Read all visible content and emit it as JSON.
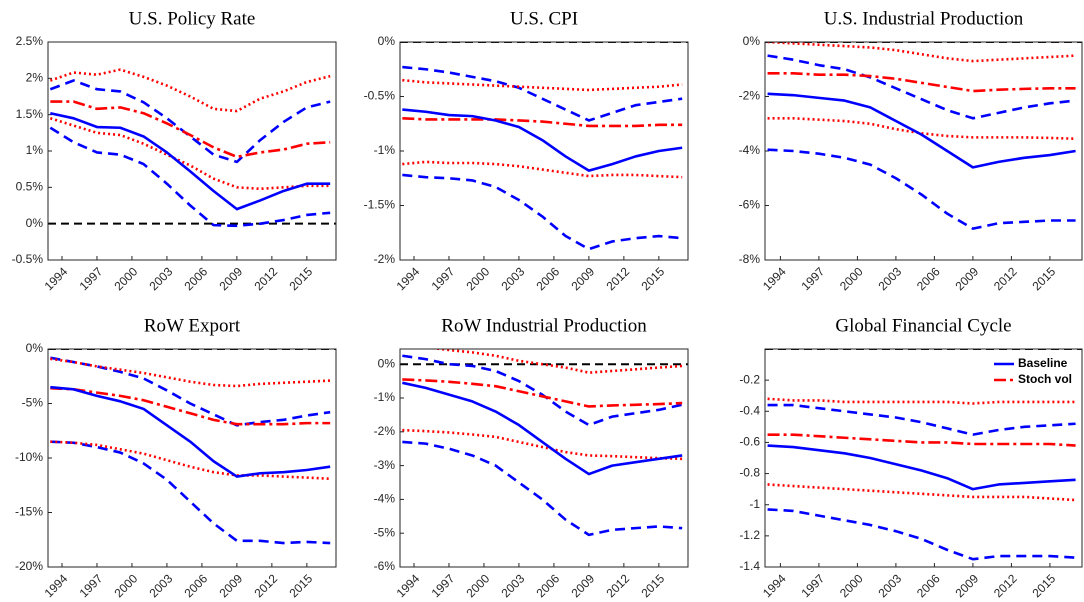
{
  "chart_data": [
    {
      "type": "line",
      "title": "U.S. Policy Rate",
      "zero_line": 0,
      "x": [
        1993,
        1995,
        1997,
        1999,
        2001,
        2003,
        2005,
        2007,
        2009,
        2011,
        2013,
        2015,
        2017
      ],
      "xlim": [
        1992.8,
        2017.5
      ],
      "xticks": [
        1994,
        1997,
        2000,
        2003,
        2006,
        2009,
        2012,
        2015
      ],
      "ylim": [
        -0.5,
        2.5
      ],
      "yticks": [
        {
          "value": -0.5,
          "label": "-0.5%"
        },
        {
          "value": 0,
          "label": "0%"
        },
        {
          "value": 0.5,
          "label": "0.5%"
        },
        {
          "value": 1,
          "label": "1%"
        },
        {
          "value": 1.5,
          "label": "1.5%"
        },
        {
          "value": 2,
          "label": "2%"
        },
        {
          "value": 2.5,
          "label": "2.5%"
        }
      ],
      "series": [
        {
          "color": "#0000ff",
          "style": "dashed",
          "values": [
            1.85,
            1.97,
            1.85,
            1.82,
            1.67,
            1.45,
            1.2,
            0.95,
            0.85,
            1.15,
            1.4,
            1.6,
            1.68
          ]
        },
        {
          "color": "#0000ff",
          "style": "dashed",
          "values": [
            1.32,
            1.12,
            0.98,
            0.95,
            0.82,
            0.55,
            0.25,
            -0.02,
            -0.03,
            0.0,
            0.05,
            0.12,
            0.15
          ]
        },
        {
          "color": "#ff0000",
          "style": "dotted",
          "values": [
            1.97,
            2.08,
            2.05,
            2.12,
            2.02,
            1.9,
            1.75,
            1.58,
            1.55,
            1.72,
            1.82,
            1.95,
            2.03
          ]
        },
        {
          "color": "#ff0000",
          "style": "dotted",
          "values": [
            1.45,
            1.35,
            1.25,
            1.22,
            1.1,
            0.95,
            0.8,
            0.62,
            0.5,
            0.48,
            0.5,
            0.52,
            0.52
          ]
        },
        {
          "color": "#ff0000",
          "style": "dashdot",
          "values": [
            1.68,
            1.68,
            1.58,
            1.6,
            1.52,
            1.38,
            1.22,
            1.05,
            0.92,
            0.98,
            1.02,
            1.1,
            1.12
          ]
        },
        {
          "color": "#0000ff",
          "style": "solid",
          "values": [
            1.52,
            1.45,
            1.33,
            1.32,
            1.2,
            0.98,
            0.72,
            0.45,
            0.2,
            0.32,
            0.45,
            0.55,
            0.55
          ]
        }
      ]
    },
    {
      "type": "line",
      "title": "U.S. CPI",
      "zero_line": 0,
      "x": [
        1993,
        1995,
        1997,
        1999,
        2001,
        2003,
        2005,
        2007,
        2009,
        2011,
        2013,
        2015,
        2017
      ],
      "xlim": [
        1992.8,
        2017.5
      ],
      "xticks": [
        1994,
        1997,
        2000,
        2003,
        2006,
        2009,
        2012,
        2015
      ],
      "ylim": [
        -2,
        0
      ],
      "yticks": [
        {
          "value": -2,
          "label": "-2%"
        },
        {
          "value": -1.5,
          "label": "-1.5%"
        },
        {
          "value": -1,
          "label": "-1%"
        },
        {
          "value": -0.5,
          "label": "-0.5%"
        },
        {
          "value": 0,
          "label": "0%"
        }
      ],
      "series": [
        {
          "color": "#0000ff",
          "style": "dashed",
          "values": [
            -0.23,
            -0.25,
            -0.28,
            -0.32,
            -0.36,
            -0.42,
            -0.52,
            -0.62,
            -0.72,
            -0.65,
            -0.58,
            -0.55,
            -0.52
          ]
        },
        {
          "color": "#0000ff",
          "style": "dashed",
          "values": [
            -1.22,
            -1.24,
            -1.25,
            -1.27,
            -1.33,
            -1.45,
            -1.6,
            -1.78,
            -1.9,
            -1.83,
            -1.8,
            -1.78,
            -1.8
          ]
        },
        {
          "color": "#ff0000",
          "style": "dotted",
          "values": [
            -0.35,
            -0.37,
            -0.38,
            -0.39,
            -0.4,
            -0.41,
            -0.42,
            -0.43,
            -0.44,
            -0.43,
            -0.42,
            -0.41,
            -0.39
          ]
        },
        {
          "color": "#ff0000",
          "style": "dotted",
          "values": [
            -1.12,
            -1.1,
            -1.11,
            -1.11,
            -1.12,
            -1.14,
            -1.17,
            -1.2,
            -1.23,
            -1.22,
            -1.22,
            -1.23,
            -1.24
          ]
        },
        {
          "color": "#ff0000",
          "style": "dashdot",
          "values": [
            -0.7,
            -0.71,
            -0.71,
            -0.71,
            -0.71,
            -0.72,
            -0.73,
            -0.75,
            -0.77,
            -0.77,
            -0.77,
            -0.76,
            -0.76
          ]
        },
        {
          "color": "#0000ff",
          "style": "solid",
          "values": [
            -0.62,
            -0.64,
            -0.67,
            -0.68,
            -0.72,
            -0.78,
            -0.9,
            -1.05,
            -1.18,
            -1.12,
            -1.05,
            -1.0,
            -0.97
          ]
        }
      ]
    },
    {
      "type": "line",
      "title": "U.S. Industrial Production",
      "zero_line": 0,
      "x": [
        1993,
        1995,
        1997,
        1999,
        2001,
        2003,
        2005,
        2007,
        2009,
        2011,
        2013,
        2015,
        2017
      ],
      "xlim": [
        1992.8,
        2017.5
      ],
      "xticks": [
        1994,
        1997,
        2000,
        2003,
        2006,
        2009,
        2012,
        2015
      ],
      "ylim": [
        -8,
        0
      ],
      "yticks": [
        {
          "value": -8,
          "label": "-8%"
        },
        {
          "value": -6,
          "label": "-6%"
        },
        {
          "value": -4,
          "label": "-4%"
        },
        {
          "value": -2,
          "label": "-2%"
        },
        {
          "value": 0,
          "label": "0%"
        }
      ],
      "series": [
        {
          "color": "#0000ff",
          "style": "dashed",
          "values": [
            -0.5,
            -0.65,
            -0.85,
            -1.0,
            -1.3,
            -1.7,
            -2.1,
            -2.5,
            -2.8,
            -2.6,
            -2.4,
            -2.25,
            -2.15
          ]
        },
        {
          "color": "#0000ff",
          "style": "dashed",
          "values": [
            -3.95,
            -4.0,
            -4.1,
            -4.25,
            -4.5,
            -5.0,
            -5.6,
            -6.3,
            -6.85,
            -6.65,
            -6.6,
            -6.55,
            -6.55
          ]
        },
        {
          "color": "#ff0000",
          "style": "dotted",
          "values": [
            0,
            -0.05,
            -0.1,
            -0.15,
            -0.2,
            -0.3,
            -0.45,
            -0.6,
            -0.7,
            -0.65,
            -0.6,
            -0.55,
            -0.5
          ]
        },
        {
          "color": "#ff0000",
          "style": "dotted",
          "values": [
            -2.8,
            -2.8,
            -2.85,
            -2.9,
            -3.0,
            -3.2,
            -3.35,
            -3.45,
            -3.5,
            -3.5,
            -3.5,
            -3.52,
            -3.55
          ]
        },
        {
          "color": "#ff0000",
          "style": "dashdot",
          "values": [
            -1.15,
            -1.15,
            -1.2,
            -1.2,
            -1.25,
            -1.35,
            -1.5,
            -1.65,
            -1.8,
            -1.75,
            -1.72,
            -1.7,
            -1.7
          ]
        },
        {
          "color": "#0000ff",
          "style": "solid",
          "values": [
            -1.9,
            -1.95,
            -2.05,
            -2.15,
            -2.4,
            -2.9,
            -3.4,
            -4.0,
            -4.6,
            -4.4,
            -4.25,
            -4.15,
            -4.0
          ]
        }
      ]
    },
    {
      "type": "line",
      "title": "RoW Export",
      "zero_line": 0,
      "x": [
        1993,
        1995,
        1997,
        1999,
        2001,
        2003,
        2005,
        2007,
        2009,
        2011,
        2013,
        2015,
        2017
      ],
      "xlim": [
        1992.8,
        2017.5
      ],
      "xticks": [
        1994,
        1997,
        2000,
        2003,
        2006,
        2009,
        2012,
        2015
      ],
      "ylim": [
        -20,
        0
      ],
      "yticks": [
        {
          "value": -20,
          "label": "-20%"
        },
        {
          "value": -15,
          "label": "-15%"
        },
        {
          "value": -10,
          "label": "-10%"
        },
        {
          "value": -5,
          "label": "-5%"
        },
        {
          "value": 0,
          "label": "0%"
        }
      ],
      "series": [
        {
          "color": "#0000ff",
          "style": "dashed",
          "values": [
            -0.8,
            -1.2,
            -1.6,
            -2.1,
            -2.7,
            -3.8,
            -5.0,
            -6.0,
            -7.0,
            -6.7,
            -6.5,
            -6.1,
            -5.8
          ]
        },
        {
          "color": "#0000ff",
          "style": "dashed",
          "values": [
            -8.5,
            -8.6,
            -9.0,
            -9.5,
            -10.5,
            -12.0,
            -14.0,
            -16.0,
            -17.6,
            -17.6,
            -17.8,
            -17.7,
            -17.8
          ]
        },
        {
          "color": "#ff0000",
          "style": "dotted",
          "values": [
            -0.9,
            -1.2,
            -1.6,
            -1.9,
            -2.2,
            -2.6,
            -3.0,
            -3.3,
            -3.4,
            -3.2,
            -3.1,
            -3.0,
            -2.9
          ]
        },
        {
          "color": "#ff0000",
          "style": "dotted",
          "values": [
            -8.5,
            -8.6,
            -8.8,
            -9.2,
            -9.6,
            -10.2,
            -10.8,
            -11.3,
            -11.6,
            -11.6,
            -11.7,
            -11.8,
            -11.9
          ]
        },
        {
          "color": "#ff0000",
          "style": "dashdot",
          "values": [
            -3.6,
            -3.7,
            -4.0,
            -4.3,
            -4.7,
            -5.3,
            -5.9,
            -6.5,
            -6.9,
            -6.9,
            -6.9,
            -6.8,
            -6.8
          ]
        },
        {
          "color": "#0000ff",
          "style": "solid",
          "values": [
            -3.5,
            -3.7,
            -4.3,
            -4.8,
            -5.5,
            -7.0,
            -8.5,
            -10.3,
            -11.7,
            -11.4,
            -11.3,
            -11.1,
            -10.8
          ]
        }
      ]
    },
    {
      "type": "line",
      "title": "RoW Industrial Production",
      "zero_line": 0,
      "x": [
        1993,
        1995,
        1997,
        1999,
        2001,
        2003,
        2005,
        2007,
        2009,
        2011,
        2013,
        2015,
        2017
      ],
      "xlim": [
        1992.8,
        2017.5
      ],
      "xticks": [
        1994,
        1997,
        2000,
        2003,
        2006,
        2009,
        2012,
        2015
      ],
      "ylim": [
        -6,
        0.45
      ],
      "yticks": [
        {
          "value": -6,
          "label": "-6%"
        },
        {
          "value": -5,
          "label": "-5%"
        },
        {
          "value": -4,
          "label": "-4%"
        },
        {
          "value": -3,
          "label": "-3%"
        },
        {
          "value": -2,
          "label": "-2%"
        },
        {
          "value": -1,
          "label": "-1%"
        },
        {
          "value": 0,
          "label": "0%"
        }
      ],
      "series": [
        {
          "color": "#0000ff",
          "style": "dashed",
          "values": [
            0.25,
            0.15,
            0.0,
            -0.05,
            -0.2,
            -0.5,
            -0.9,
            -1.4,
            -1.8,
            -1.55,
            -1.45,
            -1.35,
            -1.2
          ]
        },
        {
          "color": "#0000ff",
          "style": "dashed",
          "values": [
            -2.3,
            -2.35,
            -2.5,
            -2.7,
            -3.0,
            -3.5,
            -4.0,
            -4.6,
            -5.05,
            -4.9,
            -4.85,
            -4.8,
            -4.85
          ]
        },
        {
          "color": "#ff0000",
          "style": "dotted",
          "values": [
            0.52,
            0.5,
            0.42,
            0.35,
            0.25,
            0.1,
            0.0,
            -0.1,
            -0.25,
            -0.2,
            -0.15,
            -0.1,
            -0.05
          ]
        },
        {
          "color": "#ff0000",
          "style": "dotted",
          "values": [
            -1.95,
            -1.98,
            -2.02,
            -2.08,
            -2.15,
            -2.3,
            -2.45,
            -2.6,
            -2.7,
            -2.72,
            -2.75,
            -2.78,
            -2.8
          ]
        },
        {
          "color": "#ff0000",
          "style": "dashdot",
          "values": [
            -0.45,
            -0.48,
            -0.52,
            -0.58,
            -0.65,
            -0.8,
            -0.95,
            -1.1,
            -1.25,
            -1.22,
            -1.2,
            -1.18,
            -1.15
          ]
        },
        {
          "color": "#0000ff",
          "style": "solid",
          "values": [
            -0.55,
            -0.7,
            -0.9,
            -1.1,
            -1.4,
            -1.8,
            -2.3,
            -2.8,
            -3.25,
            -3.0,
            -2.9,
            -2.8,
            -2.7
          ]
        }
      ]
    },
    {
      "type": "line",
      "title": "Global Financial Cycle",
      "zero_line": 0,
      "legend": "upper right",
      "x": [
        1993,
        1995,
        1997,
        1999,
        2001,
        2003,
        2005,
        2007,
        2009,
        2011,
        2013,
        2015,
        2017
      ],
      "xlim": [
        1992.8,
        2017.5
      ],
      "xticks": [
        1994,
        1997,
        2000,
        2003,
        2006,
        2009,
        2012,
        2015
      ],
      "ylim": [
        -1.4,
        0
      ],
      "yticks": [
        -1.4,
        -1.2,
        -1,
        -0.8,
        -0.6,
        -0.4,
        -0.2
      ],
      "series": [
        {
          "color": "#0000ff",
          "style": "dashed",
          "values": [
            -0.36,
            -0.36,
            -0.38,
            -0.4,
            -0.42,
            -0.44,
            -0.47,
            -0.51,
            -0.55,
            -0.52,
            -0.5,
            -0.49,
            -0.48
          ]
        },
        {
          "color": "#0000ff",
          "style": "dashed",
          "values": [
            -1.03,
            -1.04,
            -1.07,
            -1.1,
            -1.13,
            -1.17,
            -1.22,
            -1.29,
            -1.35,
            -1.33,
            -1.33,
            -1.33,
            -1.34
          ]
        },
        {
          "color": "#ff0000",
          "style": "dotted",
          "values": [
            -0.32,
            -0.33,
            -0.33,
            -0.34,
            -0.34,
            -0.34,
            -0.34,
            -0.34,
            -0.35,
            -0.34,
            -0.34,
            -0.34,
            -0.34
          ]
        },
        {
          "color": "#ff0000",
          "style": "dotted",
          "values": [
            -0.87,
            -0.88,
            -0.89,
            -0.9,
            -0.91,
            -0.92,
            -0.93,
            -0.94,
            -0.95,
            -0.95,
            -0.95,
            -0.96,
            -0.97
          ]
        },
        {
          "name": "Stoch vol",
          "color": "#ff0000",
          "style": "dashdot",
          "values": [
            -0.55,
            -0.55,
            -0.56,
            -0.57,
            -0.58,
            -0.59,
            -0.6,
            -0.6,
            -0.61,
            -0.61,
            -0.61,
            -0.61,
            -0.62
          ]
        },
        {
          "name": "Baseline",
          "color": "#0000ff",
          "style": "solid",
          "values": [
            -0.62,
            -0.63,
            -0.65,
            -0.67,
            -0.7,
            -0.74,
            -0.78,
            -0.83,
            -0.9,
            -0.87,
            -0.86,
            -0.85,
            -0.84
          ]
        }
      ]
    }
  ]
}
